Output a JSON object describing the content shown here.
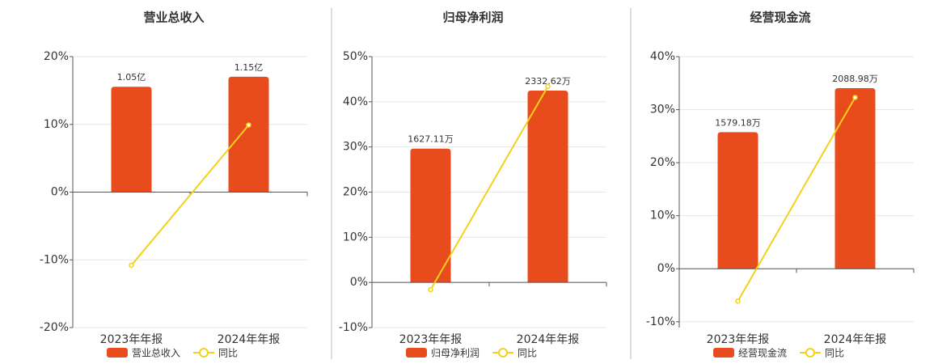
{
  "chart_data": [
    {
      "type": "bar-line",
      "title": "营业总收入",
      "categories": [
        "2023年年报",
        "2024年年报"
      ],
      "series": [
        {
          "name": "营业总收入",
          "color": "#e84c1c",
          "axis": "y2",
          "values": [
            1.05,
            1.15
          ],
          "value_labels": [
            "1.05亿",
            "1.15亿"
          ]
        },
        {
          "name": "同比",
          "color": "#f2d21a",
          "values": [
            -10.8,
            9.9
          ]
        }
      ],
      "ylim": [
        -20,
        20
      ],
      "yticks": [
        {
          "value": -20,
          "label": "-20%"
        },
        {
          "value": -10,
          "label": "-10%"
        },
        {
          "value": 0,
          "label": "0%"
        },
        {
          "value": 10,
          "label": "10%"
        },
        {
          "value": 20,
          "label": "20%"
        }
      ],
      "y2lim": [
        -1.35,
        1.35
      ],
      "grid": true
    },
    {
      "type": "bar-line",
      "title": "归母净利润",
      "categories": [
        "2023年年报",
        "2024年年报"
      ],
      "series": [
        {
          "name": "归母净利润",
          "color": "#e84c1c",
          "axis": "y2",
          "values": [
            1627.11,
            2332.62
          ],
          "value_labels": [
            "1627.11万",
            "2332.62万"
          ]
        },
        {
          "name": "同比",
          "color": "#f2d21a",
          "values": [
            -1.6,
            43.4
          ]
        }
      ],
      "ylim": [
        -10,
        50
      ],
      "yticks": [
        {
          "value": -10,
          "label": "-10%"
        },
        {
          "value": 0,
          "label": "0%"
        },
        {
          "value": 10,
          "label": "10%"
        },
        {
          "value": 20,
          "label": "20%"
        },
        {
          "value": 30,
          "label": "30%"
        },
        {
          "value": 40,
          "label": "40%"
        },
        {
          "value": 50,
          "label": "50%"
        }
      ],
      "y2lim": [
        -551,
        2746
      ],
      "grid": true
    },
    {
      "type": "bar-line",
      "title": "经营现金流",
      "categories": [
        "2023年年报",
        "2024年年报"
      ],
      "series": [
        {
          "name": "经营现金流",
          "color": "#e84c1c",
          "axis": "y2",
          "values": [
            1579.18,
            2088.98
          ],
          "value_labels": [
            "1579.18万",
            "2088.98万"
          ]
        },
        {
          "name": "同比",
          "color": "#f2d21a",
          "values": [
            -6.1,
            32.3
          ]
        }
      ],
      "ylim": [
        -11.1,
        40
      ],
      "yticks": [
        {
          "value": -10,
          "label": "-10%"
        },
        {
          "value": 0,
          "label": "0%"
        },
        {
          "value": 10,
          "label": "10%"
        },
        {
          "value": 20,
          "label": "20%"
        },
        {
          "value": 30,
          "label": "30%"
        },
        {
          "value": 40,
          "label": "40%"
        }
      ],
      "y2lim": [
        -684,
        2454
      ],
      "grid": true
    }
  ]
}
